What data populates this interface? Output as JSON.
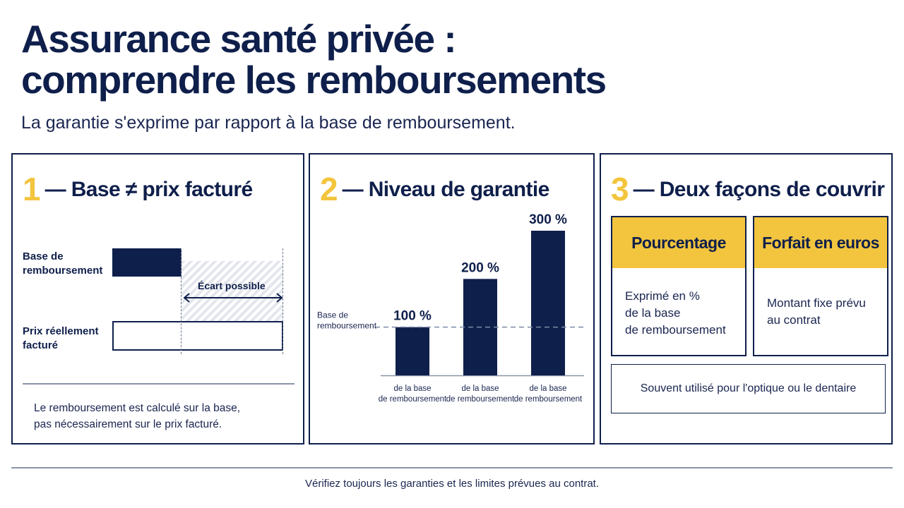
{
  "header": {
    "title_line1": "Assurance santé privée :",
    "title_line2": "comprendre les remboursements",
    "subtitle": "La garantie s'exprime par rapport à la base de remboursement."
  },
  "panel1": {
    "num": "1",
    "title": "— Base ≠ prix facturé",
    "label_base_1": "Base de",
    "label_base_2": "remboursement",
    "label_prix_1": "Prix réellement",
    "label_prix_2": "facturé",
    "ecart": "Écart possible",
    "note_1": "Le remboursement est calculé sur la base,",
    "note_2": "pas nécessairement sur le prix facturé."
  },
  "panel2": {
    "num": "2",
    "title": "— Niveau de garantie"
  },
  "chart_data": {
    "type": "bar",
    "categories": [
      "de la base\nde remboursement",
      "de la base\nde remboursement",
      "de la base\nde remboursement"
    ],
    "values": [
      100,
      200,
      300
    ],
    "value_labels": [
      "100 %",
      "200 %",
      "300 %"
    ],
    "reference_line": {
      "value": 100,
      "label_1": "Base de",
      "label_2": "remboursement"
    },
    "ylim": [
      0,
      300
    ],
    "grid": false,
    "colors": {
      "bar": "#0f1f4b",
      "reference": "#7d8aa6"
    }
  },
  "panel3": {
    "num": "3",
    "title": "— Deux façons de couvrir",
    "card1": {
      "head": "Pourcentage",
      "line1": "Exprimé en %",
      "line2": "de la base",
      "line3": "de remboursement"
    },
    "card2": {
      "head": "Forfait en euros",
      "line1": "Montant fixe prévu",
      "line2": "au contrat"
    },
    "note": "Souvent utilisé pour l'optique ou le dentaire"
  },
  "footer": "Vérifiez toujours les garanties et les limites prévues au contrat.",
  "colors": {
    "navy": "#0f1f4b",
    "accent": "#f3c53e"
  }
}
